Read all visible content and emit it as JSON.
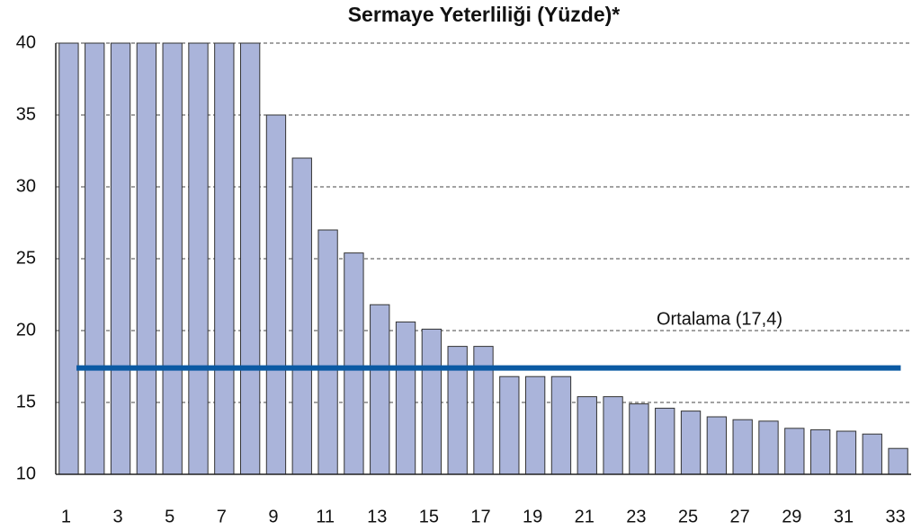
{
  "chart_data": {
    "type": "bar",
    "title": "Sermaye Yeterliliği (Yüzde)*",
    "categories": [
      "1",
      null,
      "3",
      null,
      "5",
      null,
      "7",
      null,
      "9",
      null,
      "11",
      null,
      "13",
      null,
      "15",
      null,
      "17",
      null,
      "19",
      null,
      "21",
      null,
      "23",
      null,
      "25",
      null,
      "27",
      null,
      "29",
      null,
      "31",
      null,
      "33"
    ],
    "values": [
      40,
      40,
      40,
      40,
      40,
      40,
      40,
      40,
      35,
      32,
      27,
      25.4,
      21.8,
      20.6,
      20.1,
      18.9,
      18.9,
      16.8,
      16.8,
      16.8,
      15.4,
      15.4,
      14.9,
      14.6,
      14.4,
      14.0,
      13.8,
      13.7,
      13.2,
      13.1,
      13.0,
      12.8,
      11.8
    ],
    "color": "#aab4da",
    "ylim": [
      10,
      40
    ],
    "yticks": [
      10,
      15,
      20,
      25,
      30,
      35,
      40
    ],
    "grid": true,
    "average": {
      "value": 17.4,
      "label": "Ortalama (17,4)",
      "color": "#0b5aa3"
    }
  }
}
